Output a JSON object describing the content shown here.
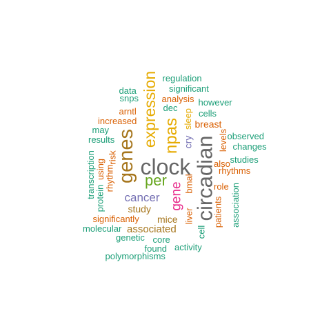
{
  "colors": {
    "teal": "#1b9e77",
    "orange": "#d95f02",
    "purple": "#7570b3",
    "magenta": "#e7298a",
    "green": "#66a61e",
    "gold": "#e6ab02",
    "brown": "#a6761d",
    "gray": "#666666"
  },
  "words": [
    {
      "text": "clock",
      "color": "gray",
      "rotated": false
    },
    {
      "text": "circadian",
      "color": "gray",
      "rotated": true
    },
    {
      "text": "genes",
      "color": "brown",
      "rotated": true
    },
    {
      "text": "expression",
      "color": "gold",
      "rotated": true
    },
    {
      "text": "npas",
      "color": "gold",
      "rotated": true
    },
    {
      "text": "per",
      "color": "green",
      "rotated": false
    },
    {
      "text": "gene",
      "color": "magenta",
      "rotated": true
    },
    {
      "text": "cancer",
      "color": "purple",
      "rotated": false
    },
    {
      "text": "cry",
      "color": "purple",
      "rotated": true
    },
    {
      "text": "associated",
      "color": "brown",
      "rotated": false
    },
    {
      "text": "study",
      "color": "brown",
      "rotated": false
    },
    {
      "text": "mice",
      "color": "brown",
      "rotated": false
    },
    {
      "text": "breast",
      "color": "orange",
      "rotated": false
    },
    {
      "text": "sleep",
      "color": "gold",
      "rotated": true
    },
    {
      "text": "regulation",
      "color": "teal",
      "rotated": false
    },
    {
      "text": "significant",
      "color": "teal",
      "rotated": false
    },
    {
      "text": "data",
      "color": "teal",
      "rotated": false
    },
    {
      "text": "snps",
      "color": "teal",
      "rotated": false
    },
    {
      "text": "analysis",
      "color": "orange",
      "rotated": false
    },
    {
      "text": "however",
      "color": "teal",
      "rotated": false
    },
    {
      "text": "dec",
      "color": "teal",
      "rotated": false
    },
    {
      "text": "arntl",
      "color": "orange",
      "rotated": false
    },
    {
      "text": "cells",
      "color": "teal",
      "rotated": false
    },
    {
      "text": "increased",
      "color": "orange",
      "rotated": false
    },
    {
      "text": "may",
      "color": "teal",
      "rotated": false
    },
    {
      "text": "results",
      "color": "teal",
      "rotated": false
    },
    {
      "text": "observed",
      "color": "teal",
      "rotated": false
    },
    {
      "text": "changes",
      "color": "teal",
      "rotated": false
    },
    {
      "text": "levels",
      "color": "orange",
      "rotated": true
    },
    {
      "text": "risk",
      "color": "orange",
      "rotated": true
    },
    {
      "text": "using",
      "color": "orange",
      "rotated": true
    },
    {
      "text": "rhythm",
      "color": "orange",
      "rotated": true
    },
    {
      "text": "studies",
      "color": "teal",
      "rotated": false
    },
    {
      "text": "also",
      "color": "orange",
      "rotated": false
    },
    {
      "text": "rhythms",
      "color": "orange",
      "rotated": false
    },
    {
      "text": "transcription",
      "color": "teal",
      "rotated": true
    },
    {
      "text": "protein",
      "color": "teal",
      "rotated": true
    },
    {
      "text": "bmal",
      "color": "orange",
      "rotated": true
    },
    {
      "text": "role",
      "color": "orange",
      "rotated": false
    },
    {
      "text": "association",
      "color": "teal",
      "rotated": true
    },
    {
      "text": "patients",
      "color": "orange",
      "rotated": true
    },
    {
      "text": "liver",
      "color": "orange",
      "rotated": true
    },
    {
      "text": "cell",
      "color": "teal",
      "rotated": true
    },
    {
      "text": "significantly",
      "color": "orange",
      "rotated": false
    },
    {
      "text": "molecular",
      "color": "teal",
      "rotated": false
    },
    {
      "text": "genetic",
      "color": "teal",
      "rotated": false
    },
    {
      "text": "core",
      "color": "teal",
      "rotated": false
    },
    {
      "text": "found",
      "color": "teal",
      "rotated": false
    },
    {
      "text": "activity",
      "color": "teal",
      "rotated": false
    },
    {
      "text": "polymorphisms",
      "color": "teal",
      "rotated": false
    }
  ]
}
